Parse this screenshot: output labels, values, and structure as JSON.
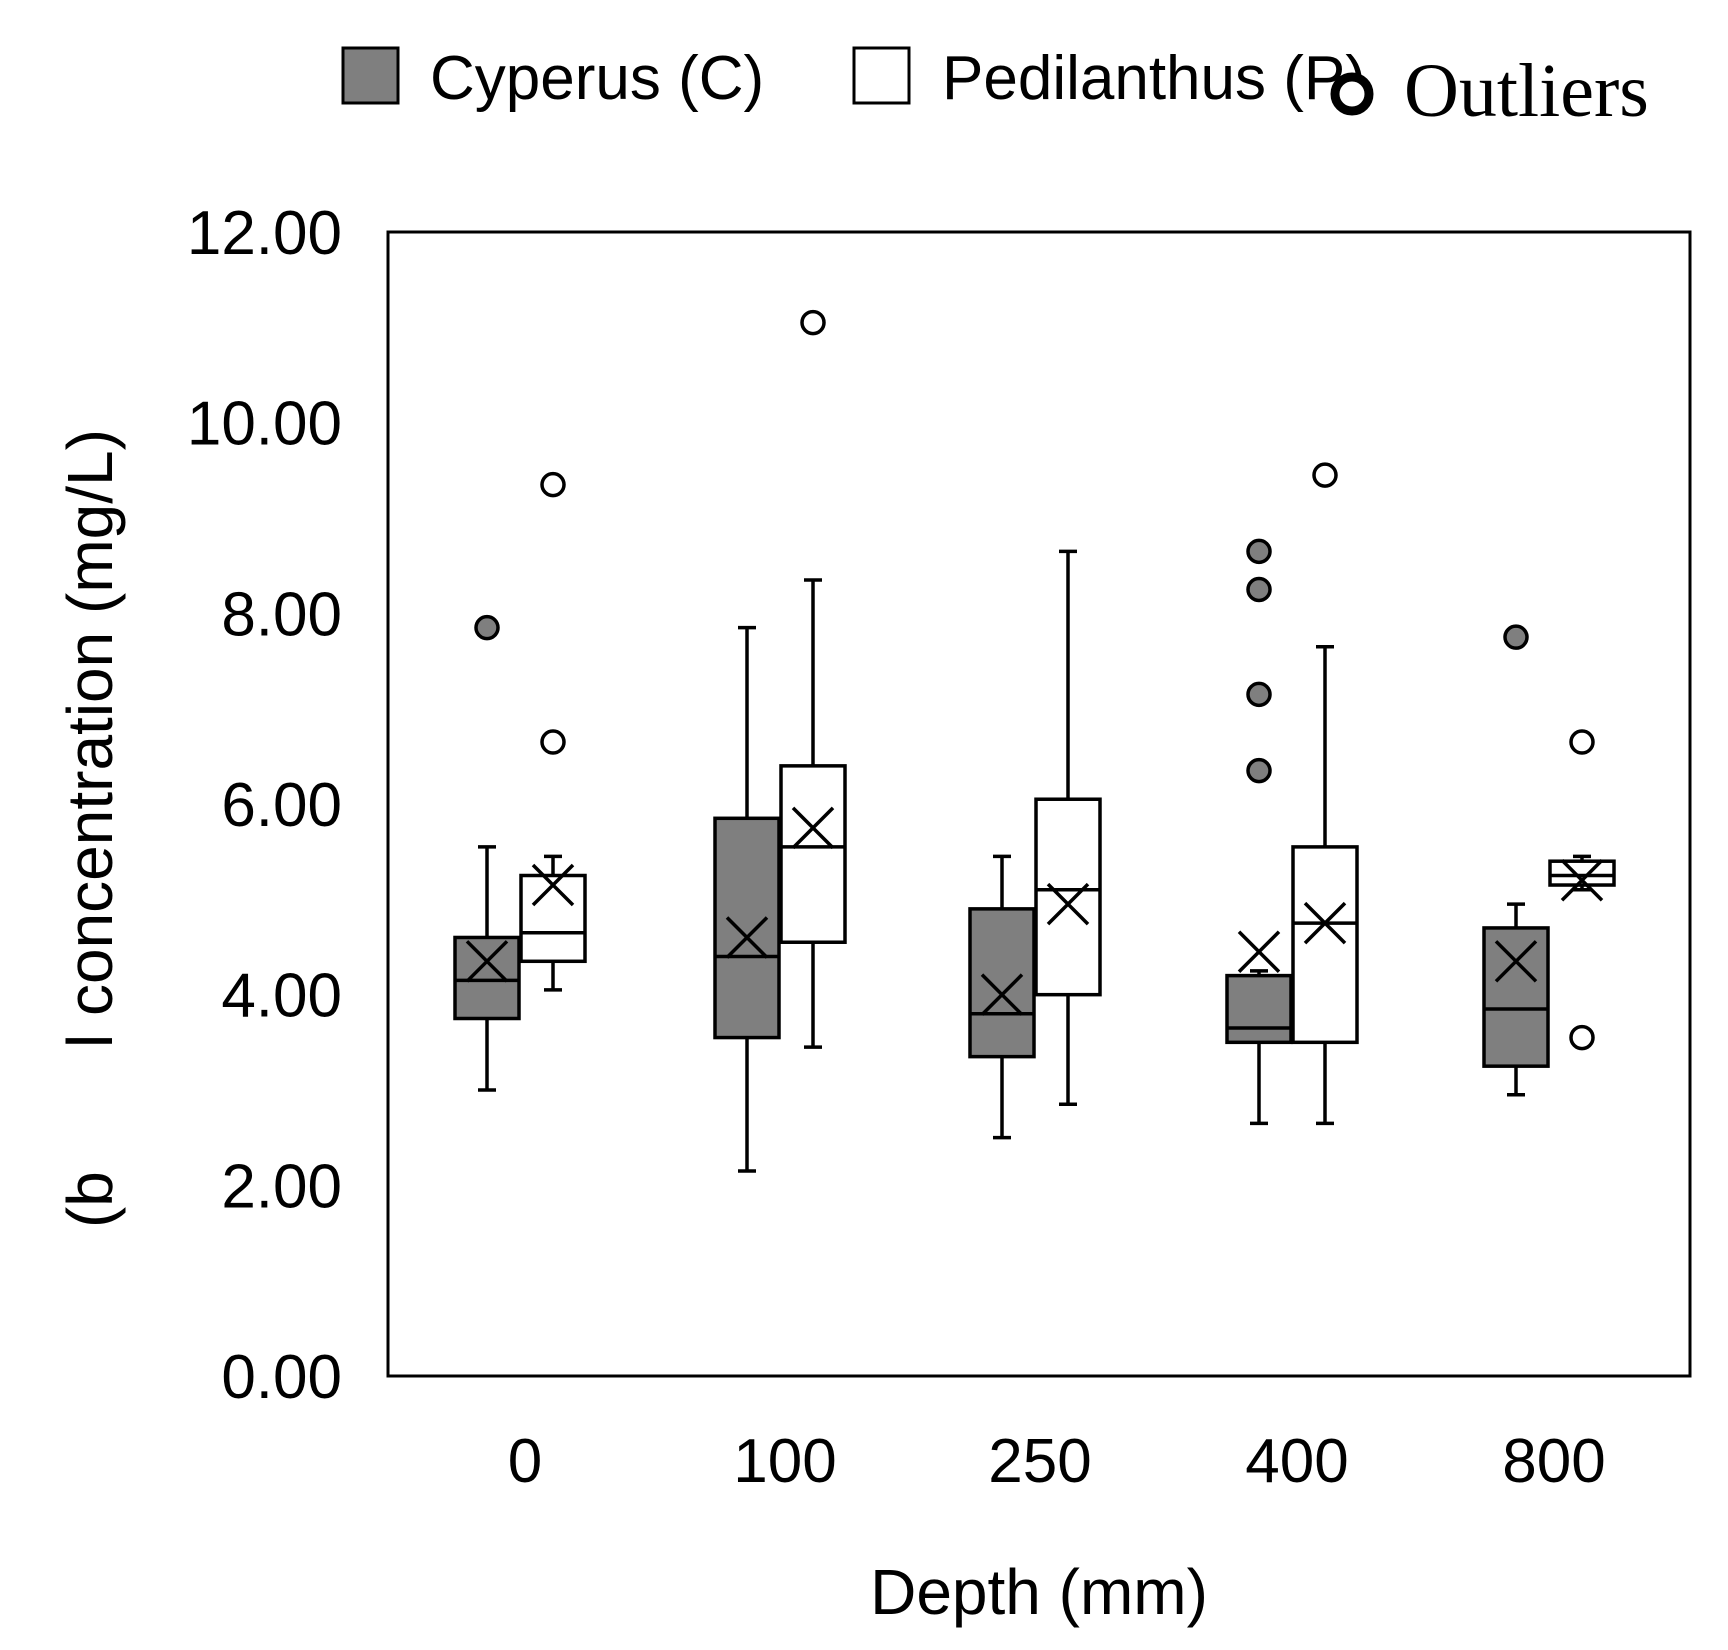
{
  "chart_data": {
    "type": "box",
    "xlabel": "Depth (mm)",
    "ylabel_fragment_left": "(b",
    "ylabel": "l concentration (mg/L)",
    "ylim": [
      0,
      12
    ],
    "yticks": [
      "0.00",
      "2.00",
      "4.00",
      "6.00",
      "8.00",
      "10.00",
      "12.00"
    ],
    "categories": [
      "0",
      "100",
      "250",
      "400",
      "800"
    ],
    "legend": {
      "items": [
        {
          "name": "Cyperus (C)",
          "fill": "#7f7f7f"
        },
        {
          "name": "Pedilanthus (P)",
          "fill": "#ffffff"
        }
      ],
      "outliers_label": "Outliers"
    },
    "series": [
      {
        "name": "Cyperus (C)",
        "fill": "#7f7f7f",
        "boxes": [
          {
            "category": "0",
            "whisker_low": 3.0,
            "q1": 3.75,
            "median": 4.15,
            "q3": 4.6,
            "whisker_high": 5.55,
            "mean": 4.35,
            "outliers": [
              7.85
            ]
          },
          {
            "category": "100",
            "whisker_low": 2.15,
            "q1": 3.55,
            "median": 4.4,
            "q3": 5.85,
            "whisker_high": 7.85,
            "mean": 4.6,
            "outliers": []
          },
          {
            "category": "250",
            "whisker_low": 2.5,
            "q1": 3.35,
            "median": 3.8,
            "q3": 4.9,
            "whisker_high": 5.45,
            "mean": 4.0,
            "outliers": []
          },
          {
            "category": "400",
            "whisker_low": 2.65,
            "q1": 3.5,
            "median": 3.65,
            "q3": 4.2,
            "whisker_high": 4.25,
            "mean": 4.45,
            "outliers": [
              6.35,
              7.15,
              8.25,
              8.65
            ]
          },
          {
            "category": "800",
            "whisker_low": 2.95,
            "q1": 3.25,
            "median": 3.85,
            "q3": 4.7,
            "whisker_high": 4.95,
            "mean": 4.35,
            "outliers": [
              7.75
            ]
          }
        ]
      },
      {
        "name": "Pedilanthus (P)",
        "fill": "#ffffff",
        "boxes": [
          {
            "category": "0",
            "whisker_low": 4.05,
            "q1": 4.35,
            "median": 4.65,
            "q3": 5.25,
            "whisker_high": 5.45,
            "mean": 5.15,
            "outliers": [
              6.65,
              9.35
            ]
          },
          {
            "category": "100",
            "whisker_low": 3.45,
            "q1": 4.55,
            "median": 5.55,
            "q3": 6.4,
            "whisker_high": 8.35,
            "mean": 5.75,
            "outliers": [
              11.05
            ]
          },
          {
            "category": "250",
            "whisker_low": 2.85,
            "q1": 4.0,
            "median": 5.1,
            "q3": 6.05,
            "whisker_high": 8.65,
            "mean": 4.95,
            "outliers": []
          },
          {
            "category": "400",
            "whisker_low": 2.65,
            "q1": 3.5,
            "median": 4.75,
            "q3": 5.55,
            "whisker_high": 7.65,
            "mean": 4.75,
            "outliers": [
              9.45
            ]
          },
          {
            "category": "800",
            "whisker_low": 5.1,
            "q1": 5.15,
            "median": 5.25,
            "q3": 5.4,
            "whisker_high": 5.45,
            "mean": 5.2,
            "outliers": [
              3.55,
              6.65
            ]
          }
        ]
      }
    ]
  }
}
